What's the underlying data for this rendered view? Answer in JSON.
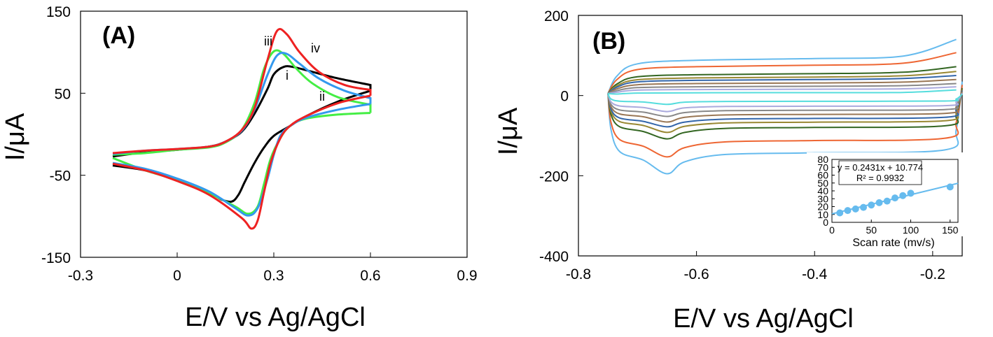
{
  "chart_data": [
    {
      "type": "line",
      "panel_label": "(A)",
      "xlabel": "E/V vs Ag/AgCl",
      "ylabel": "I/μA",
      "xlim": [
        -0.3,
        0.9
      ],
      "ylim": [
        -150,
        150
      ],
      "x_ticks": [
        -0.3,
        0,
        0.3,
        0.6,
        0.9
      ],
      "x_tick_labels": [
        "-0.3",
        "0",
        "0.3",
        "0.6",
        "0.9"
      ],
      "y_ticks": [
        -150,
        -50,
        50,
        150
      ],
      "y_tick_labels": [
        "-150",
        "-50",
        "50",
        "150"
      ],
      "grid": false,
      "curve_labels": [
        "i",
        "ii",
        "iii",
        "iv"
      ],
      "series": [
        {
          "label": "i",
          "color": "#000000",
          "forward": [
            [
              -0.2,
              -27
            ],
            [
              -0.1,
              -22
            ],
            [
              0.0,
              -19
            ],
            [
              0.1,
              -15
            ],
            [
              0.15,
              -9
            ],
            [
              0.2,
              3
            ],
            [
              0.24,
              25
            ],
            [
              0.28,
              55
            ],
            [
              0.3,
              73
            ],
            [
              0.33,
              82
            ],
            [
              0.36,
              82
            ],
            [
              0.42,
              76
            ],
            [
              0.5,
              68
            ],
            [
              0.6,
              60
            ]
          ],
          "reverse": [
            [
              0.6,
              53
            ],
            [
              0.5,
              40
            ],
            [
              0.4,
              22
            ],
            [
              0.35,
              10
            ],
            [
              0.3,
              -2
            ],
            [
              0.27,
              -16
            ],
            [
              0.24,
              -35
            ],
            [
              0.21,
              -58
            ],
            [
              0.19,
              -74
            ],
            [
              0.17,
              -82
            ],
            [
              0.14,
              -80
            ],
            [
              0.1,
              -71
            ],
            [
              0.0,
              -55
            ],
            [
              -0.1,
              -44
            ],
            [
              -0.2,
              -38
            ]
          ]
        },
        {
          "label": "ii",
          "color": "#44ee44",
          "forward": [
            [
              -0.2,
              -25
            ],
            [
              -0.1,
              -23
            ],
            [
              0.0,
              -19
            ],
            [
              0.1,
              -16
            ],
            [
              0.15,
              -10
            ],
            [
              0.2,
              5
            ],
            [
              0.24,
              38
            ],
            [
              0.27,
              80
            ],
            [
              0.3,
              101
            ],
            [
              0.33,
              98
            ],
            [
              0.37,
              80
            ],
            [
              0.42,
              62
            ],
            [
              0.5,
              45
            ],
            [
              0.6,
              36
            ]
          ],
          "reverse": [
            [
              0.6,
              26
            ],
            [
              0.5,
              24
            ],
            [
              0.4,
              19
            ],
            [
              0.35,
              10
            ],
            [
              0.32,
              -5
            ],
            [
              0.29,
              -30
            ],
            [
              0.27,
              -60
            ],
            [
              0.25,
              -88
            ],
            [
              0.22,
              -97
            ],
            [
              0.18,
              -88
            ],
            [
              0.1,
              -72
            ],
            [
              0.0,
              -56
            ],
            [
              -0.1,
              -44
            ],
            [
              -0.2,
              -29
            ]
          ]
        },
        {
          "label": "iii",
          "color": "#3399ee",
          "forward": [
            [
              -0.2,
              -24
            ],
            [
              -0.1,
              -20
            ],
            [
              0.0,
              -18
            ],
            [
              0.1,
              -15
            ],
            [
              0.15,
              -9
            ],
            [
              0.2,
              4
            ],
            [
              0.24,
              30
            ],
            [
              0.28,
              72
            ],
            [
              0.31,
              96
            ],
            [
              0.34,
              98
            ],
            [
              0.38,
              86
            ],
            [
              0.44,
              68
            ],
            [
              0.52,
              53
            ],
            [
              0.6,
              44
            ]
          ],
          "reverse": [
            [
              0.6,
              37
            ],
            [
              0.5,
              30
            ],
            [
              0.4,
              20
            ],
            [
              0.35,
              10
            ],
            [
              0.32,
              -2
            ],
            [
              0.3,
              -25
            ],
            [
              0.28,
              -55
            ],
            [
              0.25,
              -90
            ],
            [
              0.22,
              -99
            ],
            [
              0.18,
              -90
            ],
            [
              0.1,
              -70
            ],
            [
              0.0,
              -54
            ],
            [
              -0.1,
              -42
            ],
            [
              -0.2,
              -35
            ]
          ]
        },
        {
          "label": "iv",
          "color": "#ee2222",
          "forward": [
            [
              -0.2,
              -23
            ],
            [
              -0.1,
              -20
            ],
            [
              0.0,
              -18
            ],
            [
              0.1,
              -15
            ],
            [
              0.15,
              -9
            ],
            [
              0.2,
              5
            ],
            [
              0.24,
              32
            ],
            [
              0.28,
              90
            ],
            [
              0.31,
              126
            ],
            [
              0.34,
              122
            ],
            [
              0.38,
              100
            ],
            [
              0.44,
              76
            ],
            [
              0.52,
              60
            ],
            [
              0.6,
              54
            ]
          ],
          "reverse": [
            [
              0.6,
              47
            ],
            [
              0.5,
              38
            ],
            [
              0.4,
              22
            ],
            [
              0.35,
              10
            ],
            [
              0.32,
              -5
            ],
            [
              0.29,
              -35
            ],
            [
              0.27,
              -70
            ],
            [
              0.25,
              -105
            ],
            [
              0.23,
              -115
            ],
            [
              0.2,
              -102
            ],
            [
              0.1,
              -74
            ],
            [
              0.0,
              -57
            ],
            [
              -0.1,
              -44
            ],
            [
              -0.2,
              -36
            ]
          ]
        }
      ]
    },
    {
      "type": "line",
      "panel_label": "(B)",
      "xlabel": "E/V vs Ag/AgCl",
      "ylabel": "I/μA",
      "xlim": [
        -0.8,
        -0.15
      ],
      "ylim": [
        -400,
        200
      ],
      "x_ticks": [
        -0.8,
        -0.6,
        -0.4,
        -0.2
      ],
      "x_tick_labels": [
        "-0.8",
        "-0.6",
        "-0.4",
        "-0.2"
      ],
      "y_ticks": [
        -400,
        -200,
        0,
        200
      ],
      "y_tick_labels": [
        "-400",
        "-200",
        "0",
        "200"
      ],
      "grid": false,
      "cv_x_range": [
        -0.75,
        -0.16
      ],
      "series": [
        {
          "color": "#66bbee",
          "upper": 88,
          "upper_end": 140,
          "lower": -140,
          "cathodic_peak": -195
        },
        {
          "color": "#ee6633",
          "upper": 72,
          "upper_end": 107,
          "lower": -110,
          "cathodic_peak": -153
        },
        {
          "color": "#336622",
          "upper": 52,
          "upper_end": 72,
          "lower": -78,
          "cathodic_peak": -108
        },
        {
          "color": "#998833",
          "upper": 44,
          "upper_end": 60,
          "lower": -65,
          "cathodic_peak": -92
        },
        {
          "color": "#3366aa",
          "upper": 38,
          "upper_end": 50,
          "lower": -56,
          "cathodic_peak": -78
        },
        {
          "color": "#997755",
          "upper": 30,
          "upper_end": 40,
          "lower": -46,
          "cathodic_peak": -66
        },
        {
          "color": "#888888",
          "upper": 22,
          "upper_end": 30,
          "lower": -36,
          "cathodic_peak": -52
        },
        {
          "color": "#aaaadd",
          "upper": 15,
          "upper_end": 22,
          "lower": -26,
          "cathodic_peak": -40
        },
        {
          "color": "#55dddd",
          "upper": 7,
          "upper_end": 14,
          "lower": -14,
          "cathodic_peak": -22
        }
      ],
      "inset": {
        "type": "scatter",
        "xlabel": "Scan rate (mv/s)",
        "xlim": [
          0,
          160
        ],
        "ylim": [
          0,
          80
        ],
        "x_ticks": [
          0,
          50,
          100,
          150
        ],
        "x_tick_labels": [
          "0",
          "50",
          "100",
          "150"
        ],
        "y_ticks": [
          0,
          10,
          20,
          30,
          40,
          50,
          60,
          70,
          80
        ],
        "y_tick_labels": [
          "0",
          "10",
          "20",
          "30",
          "40",
          "50",
          "60",
          "70",
          "80"
        ],
        "x": [
          10,
          20,
          30,
          40,
          50,
          60,
          70,
          80,
          90,
          100,
          150
        ],
        "y": [
          12,
          15,
          17,
          19,
          22,
          25,
          27,
          31,
          34,
          37,
          45
        ],
        "equation": "y = 0.2431x + 10.774",
        "r_squared": "R² = 0.9932",
        "fit": {
          "slope": 0.2431,
          "intercept": 10.774
        },
        "color": "#66bbee"
      }
    }
  ]
}
